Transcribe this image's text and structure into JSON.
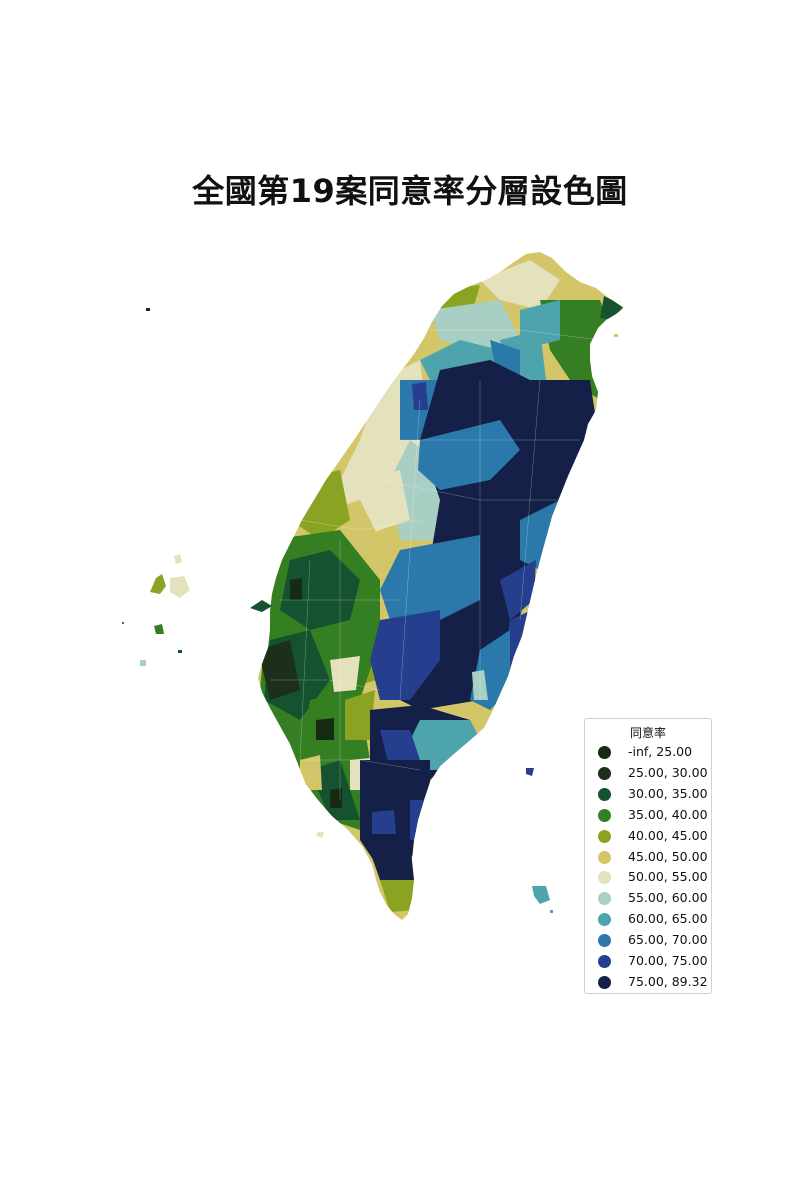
{
  "title": "全國第19案同意率分層設色圖",
  "legend": {
    "title": "同意率",
    "items": [
      {
        "label": " -inf, 25.00",
        "color": "#172a14"
      },
      {
        "label": "25.00, 30.00",
        "color": "#1b2f1a"
      },
      {
        "label": "30.00, 35.00",
        "color": "#145230"
      },
      {
        "label": "35.00, 40.00",
        "color": "#357f23"
      },
      {
        "label": "40.00, 45.00",
        "color": "#8ba323"
      },
      {
        "label": "45.00, 50.00",
        "color": "#d3c668"
      },
      {
        "label": "50.00, 55.00",
        "color": "#e3e2bc"
      },
      {
        "label": "55.00, 60.00",
        "color": "#a9cec4"
      },
      {
        "label": "60.00, 65.00",
        "color": "#4ea4ad"
      },
      {
        "label": "65.00, 70.00",
        "color": "#2b79aa"
      },
      {
        "label": "70.00, 75.00",
        "color": "#253f8e"
      },
      {
        "label": "75.00, 89.32",
        "color": "#142047"
      }
    ]
  }
}
